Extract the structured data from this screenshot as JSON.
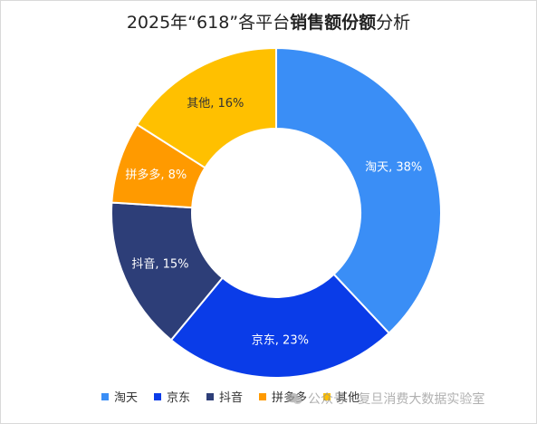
{
  "chart_data": {
    "type": "pie",
    "variant": "donut",
    "title_parts": [
      {
        "text": "2025年“618”各平台",
        "bold": false
      },
      {
        "text": "销售额份额",
        "bold": true
      },
      {
        "text": "分析",
        "bold": false
      }
    ],
    "categories": [
      "淘天",
      "京东",
      "抖音",
      "拼多多",
      "其他"
    ],
    "values": [
      38,
      23,
      15,
      8,
      16
    ],
    "unit": "%",
    "data_labels": [
      "淘天, 38%",
      "京东, 23%",
      "抖音, 15%",
      "拼多多, 8%",
      "其他, 16%"
    ],
    "colors": [
      "#3a8ef6",
      "#0a3ce8",
      "#2d3e78",
      "#ff9a00",
      "#ffc000"
    ],
    "label_colors": [
      "#ffffff",
      "#ffffff",
      "#ffffff",
      "#ffffff",
      "#333333"
    ],
    "legend_position": "bottom"
  },
  "watermark": {
    "icon": "wechat-icon",
    "text": "公众号 · 复旦消费大数据实验室"
  }
}
